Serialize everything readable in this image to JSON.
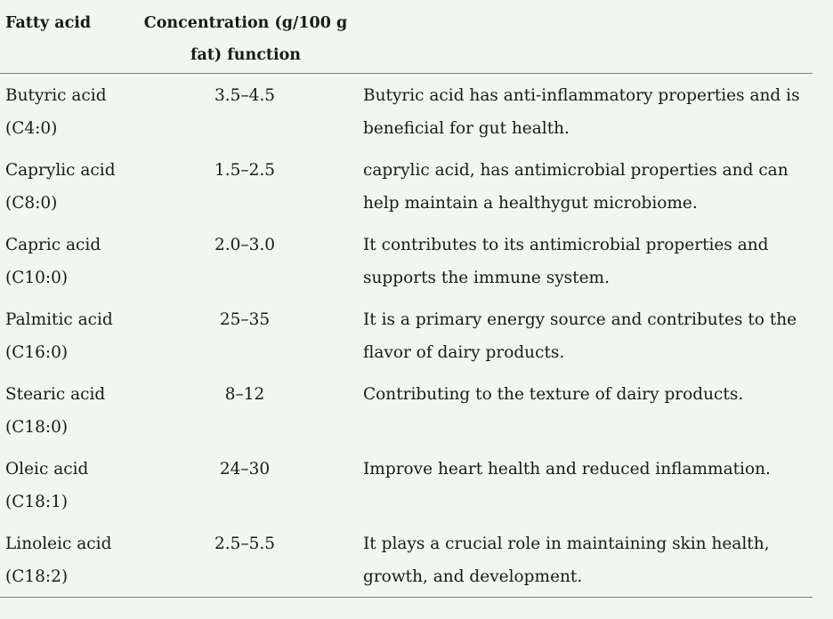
{
  "header": {
    "col1": "Fatty acid",
    "col2_line1": "Concentration (g/100 g",
    "col2_line2": "fat) function"
  },
  "rows": [
    {
      "name": "Butyric acid",
      "code": "(C4:0)",
      "conc": "3.5–4.5",
      "func1": "Butyric acid has anti-inflammatory properties and is",
      "func2": "beneficial for gut health."
    },
    {
      "name": "Caprylic acid",
      "code": "(C8:0)",
      "conc": "1.5–2.5",
      "func1": "caprylic acid, has antimicrobial properties and can",
      "func2": "help maintain a healthygut microbiome."
    },
    {
      "name": "Capric acid",
      "code": "(C10:0)",
      "conc": "2.0–3.0",
      "func1": "It contributes to its antimicrobial properties and",
      "func2": "supports the immune system."
    },
    {
      "name": "Palmitic acid",
      "code": "(C16:0)",
      "conc": "25–35",
      "func1": "It is a primary energy source and contributes to the",
      "func2": "flavor of dairy products."
    },
    {
      "name": "Stearic acid",
      "code": "(C18:0)",
      "conc": "8–12",
      "func1": "Contributing to the texture of dairy products.",
      "func2": ""
    },
    {
      "name": "Oleic acid",
      "code": "(C18:1)",
      "conc": "24–30",
      "func1": "Improve heart health and reduced inflammation.",
      "func2": ""
    },
    {
      "name": "Linoleic acid",
      "code": "(C18:2)",
      "conc": "2.5–5.5",
      "func1": "It plays a crucial role in maintaining skin health,",
      "func2": "growth, and development."
    }
  ]
}
